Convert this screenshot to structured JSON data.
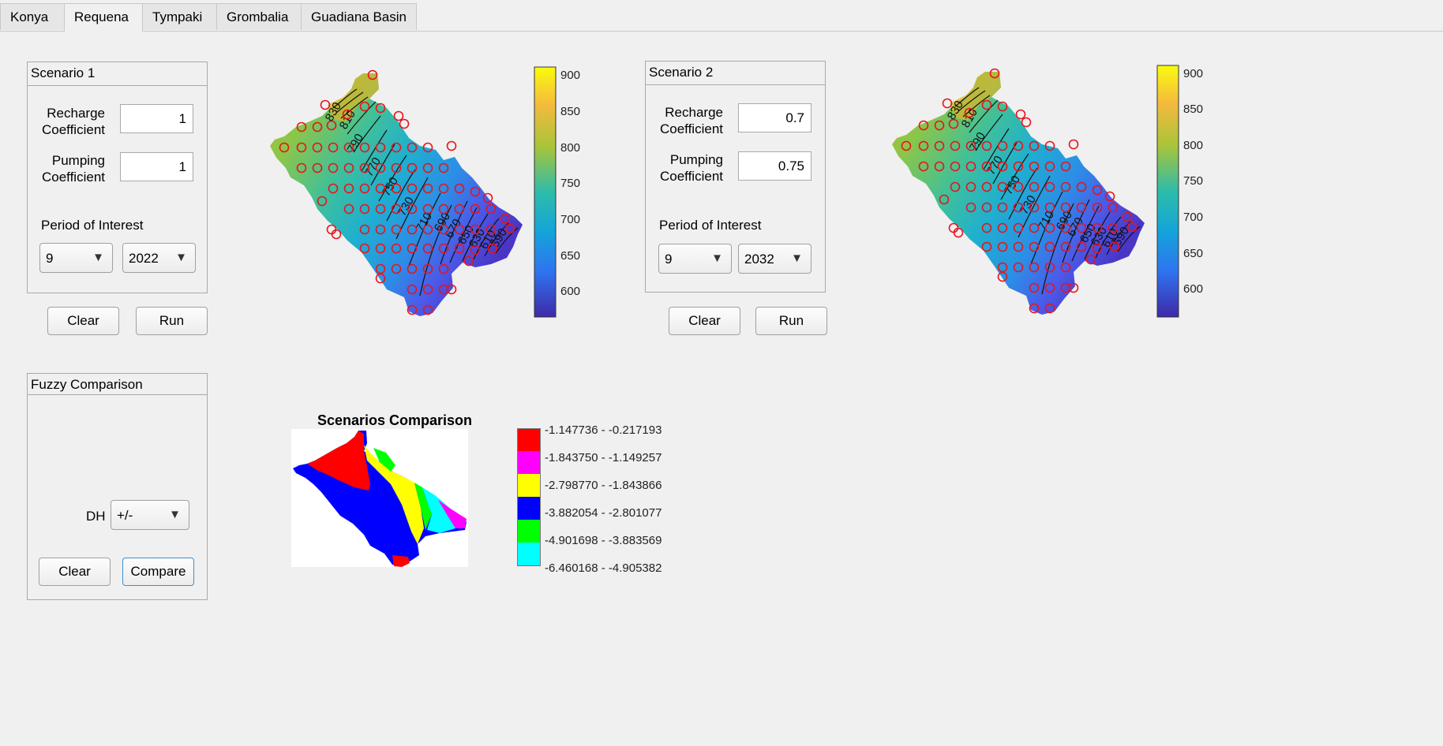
{
  "tabs": [
    {
      "label": "Konya",
      "active": false
    },
    {
      "label": "Requena",
      "active": true
    },
    {
      "label": "Tympaki",
      "active": false
    },
    {
      "label": "Grombalia",
      "active": false
    },
    {
      "label": "Guadiana Basin",
      "active": false
    }
  ],
  "scenario1": {
    "title": "Scenario 1",
    "recharge_label_1": "Recharge",
    "recharge_label_2": "Coefficient",
    "recharge_value": "1",
    "pumping_label_1": "Pumping",
    "pumping_label_2": "Coefficient",
    "pumping_value": "1",
    "period_label": "Period of Interest",
    "month": "9",
    "year": "2022",
    "clear": "Clear",
    "run": "Run"
  },
  "scenario2": {
    "title": "Scenario 2",
    "recharge_label_1": "Recharge",
    "recharge_label_2": "Coefficient",
    "recharge_value": "0.7",
    "pumping_label_1": "Pumping",
    "pumping_label_2": "Coefficient",
    "pumping_value": "0.75",
    "period_label": "Period of Interest",
    "month": "9",
    "year": "2032",
    "clear": "Clear",
    "run": "Run"
  },
  "fuzzy": {
    "title": "Fuzzy Comparison",
    "dh_label": "DH",
    "dh_value": "+/-",
    "clear": "Clear",
    "compare": "Compare"
  },
  "colorbar": {
    "ticks": [
      "900",
      "850",
      "800",
      "750",
      "700",
      "650",
      "600"
    ]
  },
  "contours": {
    "labels": [
      "830",
      "810",
      "790",
      "770",
      "750",
      "730",
      "710",
      "690",
      "670",
      "650",
      "630",
      "610",
      "590"
    ]
  },
  "comparison": {
    "title": "Scenarios Comparison",
    "legend": [
      {
        "label": "-1.147736 - -0.217193",
        "color": "#ff0000"
      },
      {
        "label": "-1.843750 - -1.149257",
        "color": "#ff00ff"
      },
      {
        "label": "-2.798770 - -1.843866",
        "color": "#ffff00"
      },
      {
        "label": "-3.882054 - -2.801077",
        "color": "#0000ff"
      },
      {
        "label": "-4.901698 - -3.883569",
        "color": "#00ff00"
      },
      {
        "label": "-6.460168 - -4.905382",
        "color": "#00ffff"
      }
    ]
  },
  "icons": {
    "caret": "chevron-down-icon",
    "well": "well-marker-icon"
  }
}
